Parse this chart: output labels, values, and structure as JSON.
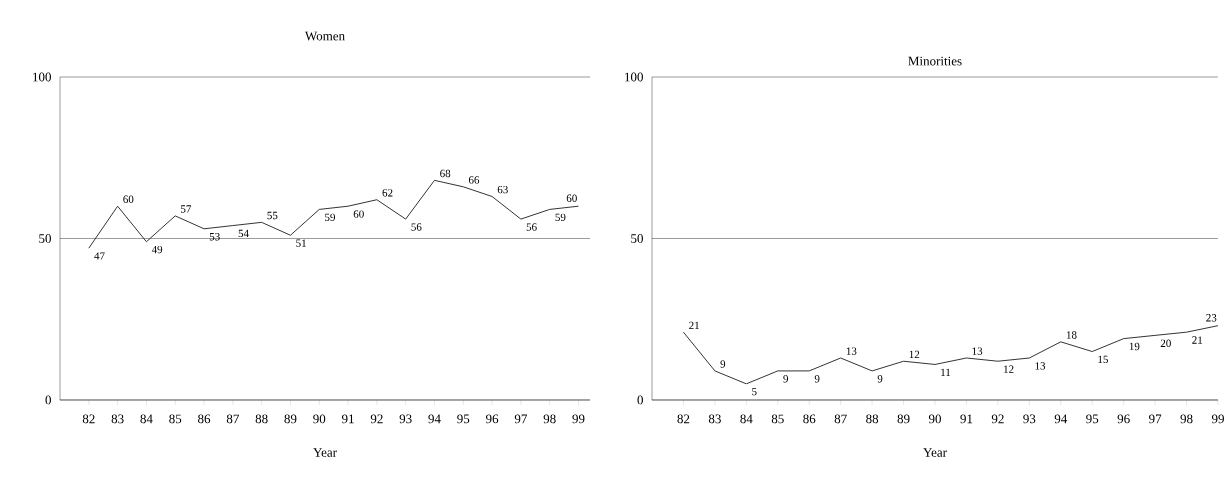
{
  "chart_data": [
    {
      "type": "line",
      "title": "Women",
      "xlabel": "Year",
      "categories": [
        "82",
        "83",
        "84",
        "85",
        "86",
        "87",
        "88",
        "89",
        "90",
        "91",
        "92",
        "93",
        "94",
        "95",
        "96",
        "97",
        "98",
        "99"
      ],
      "values": [
        47,
        60,
        49,
        57,
        53,
        54,
        55,
        51,
        59,
        60,
        62,
        56,
        68,
        66,
        63,
        56,
        59,
        60
      ],
      "color": "#333333",
      "ylim": [
        0,
        100
      ],
      "yticks": [
        0,
        50,
        100
      ],
      "grid": "y",
      "data_labels": true
    },
    {
      "type": "line",
      "title": "Minorities",
      "xlabel": "Year",
      "categories": [
        "82",
        "83",
        "84",
        "85",
        "86",
        "87",
        "88",
        "89",
        "90",
        "91",
        "92",
        "93",
        "94",
        "95",
        "96",
        "97",
        "98",
        "99"
      ],
      "values": [
        21,
        9,
        5,
        9,
        9,
        13,
        9,
        12,
        11,
        13,
        12,
        13,
        18,
        15,
        19,
        20,
        21,
        23
      ],
      "color": "#333333",
      "ylim": [
        0,
        100
      ],
      "yticks": [
        0,
        50,
        100
      ],
      "grid": "y",
      "data_labels": true
    }
  ]
}
